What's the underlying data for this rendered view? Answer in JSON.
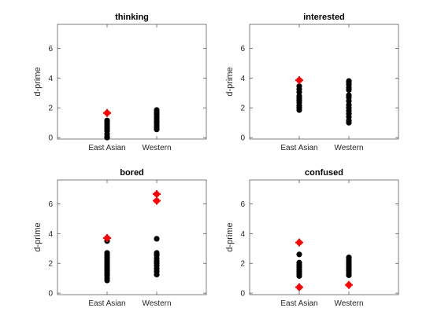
{
  "chart_data": [
    {
      "type": "scatter",
      "title": "thinking",
      "ylabel": "d-prime",
      "xlabel": "",
      "categories": [
        "East Asian",
        "Western"
      ],
      "xlim": [
        0,
        3
      ],
      "ylim": [
        -0.1,
        7.6
      ],
      "yticks": [
        0,
        2,
        4,
        6
      ],
      "grid": false,
      "marker_color": "#000000",
      "highlight_color": "#ff0000",
      "points": [
        {
          "category": "East Asian",
          "values": [
            0.0,
            0.05,
            0.25,
            0.45,
            0.6,
            0.75,
            0.9,
            1.05,
            1.15
          ]
        },
        {
          "category": "Western",
          "values": [
            0.55,
            0.7,
            0.85,
            1.0,
            1.1,
            1.25,
            1.4,
            1.55,
            1.7,
            1.85
          ]
        }
      ],
      "highlights": [
        {
          "category": "East Asian",
          "values": [
            1.65
          ]
        }
      ]
    },
    {
      "type": "scatter",
      "title": "interested",
      "ylabel": "d-prime",
      "xlabel": "",
      "categories": [
        "East Asian",
        "Western"
      ],
      "xlim": [
        0,
        3
      ],
      "ylim": [
        -0.1,
        7.6
      ],
      "yticks": [
        0,
        2,
        4,
        6
      ],
      "grid": false,
      "marker_color": "#000000",
      "highlight_color": "#ff0000",
      "points": [
        {
          "category": "East Asian",
          "values": [
            1.85,
            2.0,
            2.15,
            2.35,
            2.5,
            2.65,
            2.8,
            3.05,
            3.25,
            3.45
          ]
        },
        {
          "category": "Western",
          "values": [
            1.0,
            1.15,
            1.4,
            1.6,
            1.8,
            2.0,
            2.2,
            2.45,
            2.7,
            2.85,
            3.2,
            3.35,
            3.55,
            3.7,
            3.8
          ]
        }
      ],
      "highlights": [
        {
          "category": "East Asian",
          "values": [
            3.85
          ]
        }
      ]
    },
    {
      "type": "scatter",
      "title": "bored",
      "ylabel": "d-prime",
      "xlabel": "",
      "categories": [
        "East Asian",
        "Western"
      ],
      "xlim": [
        0,
        3
      ],
      "ylim": [
        -0.1,
        7.6
      ],
      "yticks": [
        0,
        2,
        4,
        6
      ],
      "grid": false,
      "marker_color": "#000000",
      "highlight_color": "#ff0000",
      "points": [
        {
          "category": "East Asian",
          "values": [
            0.85,
            1.0,
            1.2,
            1.35,
            1.5,
            1.65,
            1.8,
            1.95,
            2.1,
            2.25,
            2.4,
            2.55,
            2.7,
            3.5
          ]
        },
        {
          "category": "Western",
          "values": [
            1.25,
            1.45,
            1.65,
            1.85,
            2.0,
            2.15,
            2.35,
            2.55,
            2.7,
            3.65
          ]
        }
      ],
      "highlights": [
        {
          "category": "East Asian",
          "values": [
            3.7
          ]
        },
        {
          "category": "Western",
          "values": [
            6.2,
            6.65
          ]
        }
      ]
    },
    {
      "type": "scatter",
      "title": "confused",
      "ylabel": "d-prime",
      "xlabel": "",
      "categories": [
        "East Asian",
        "Western"
      ],
      "xlim": [
        0,
        3
      ],
      "ylim": [
        -0.1,
        7.6
      ],
      "yticks": [
        0,
        2,
        4,
        6
      ],
      "grid": false,
      "marker_color": "#000000",
      "highlight_color": "#ff0000",
      "points": [
        {
          "category": "East Asian",
          "values": [
            1.15,
            1.3,
            1.45,
            1.6,
            1.75,
            1.9,
            2.05,
            2.6
          ]
        },
        {
          "category": "Western",
          "values": [
            1.2,
            1.35,
            1.5,
            1.65,
            1.8,
            1.95,
            2.1,
            2.25,
            2.4
          ]
        }
      ],
      "highlights": [
        {
          "category": "East Asian",
          "values": [
            0.4,
            3.4
          ]
        },
        {
          "category": "Western",
          "values": [
            0.55
          ]
        }
      ]
    }
  ]
}
